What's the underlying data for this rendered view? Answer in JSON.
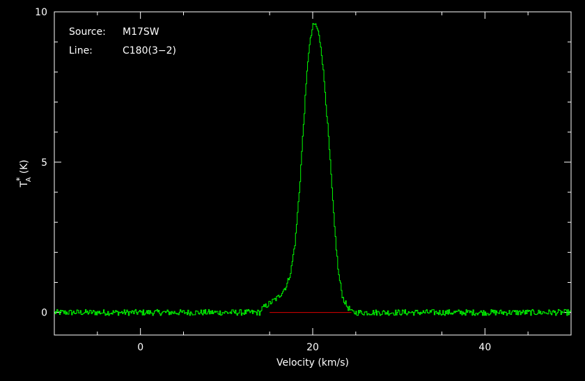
{
  "chart_data": {
    "type": "line",
    "title": "",
    "xlabel": "Velocity (km/s)",
    "ylabel": "T",
    "ylabel_super": "*",
    "ylabel_sub": "A",
    "ylabel_unit": "(K)",
    "xlim": [
      -10,
      50
    ],
    "ylim": [
      -0.75,
      10
    ],
    "x_ticks": [
      0,
      20,
      40
    ],
    "x_tick_labels": [
      "0",
      "20",
      "40"
    ],
    "y_ticks": [
      0,
      5,
      10
    ],
    "y_tick_labels": [
      "0",
      "5",
      "10"
    ],
    "annotations": [
      {
        "key": "Source:",
        "value": "M17SW"
      },
      {
        "key": "Line:",
        "value": "C180(3−2)"
      }
    ],
    "grid": false,
    "series": [
      {
        "color": "#00ff00",
        "style": "histogram",
        "x": [
          14,
          15,
          15.5,
          16,
          16.5,
          17,
          17.5,
          18,
          18.5,
          19,
          19.5,
          20,
          20.3,
          20.6,
          21,
          21.5,
          22,
          22.5,
          23,
          23.5,
          24,
          24.5
        ],
        "y": [
          0.1,
          0.3,
          0.4,
          0.5,
          0.7,
          0.9,
          1.4,
          2.4,
          4.2,
          6.5,
          8.6,
          9.5,
          9.6,
          9.4,
          8.8,
          7.2,
          5.2,
          3.0,
          1.3,
          0.5,
          0.2,
          0.05
        ]
      },
      {
        "color": "#dd0000",
        "style": "baseline",
        "x": [
          15,
          24.5
        ],
        "y": [
          0,
          0
        ]
      }
    ],
    "colors": {
      "background": "#000000",
      "axes": "#ffffff",
      "spectrum": "#00ff00",
      "baseline": "#dd0000"
    }
  }
}
